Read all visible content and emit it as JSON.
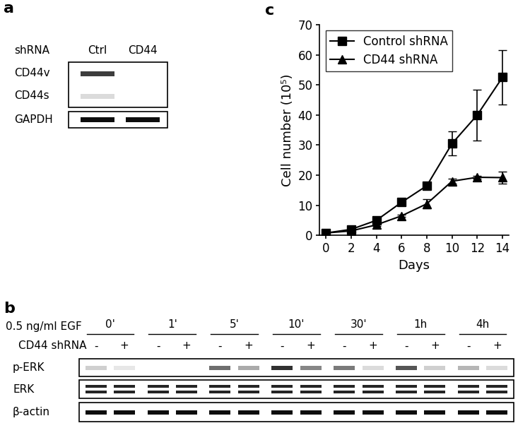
{
  "panel_labels": [
    "a",
    "b",
    "c"
  ],
  "blot_a": {
    "header": "shRNA",
    "lanes": [
      "Ctrl",
      "CD44"
    ],
    "boxes": [
      {
        "rows": [
          {
            "label": "CD44v",
            "bands": [
              0.8,
              0
            ]
          },
          {
            "label": "CD44s",
            "bands": [
              0.15,
              0
            ]
          }
        ]
      },
      {
        "rows": [
          {
            "label": "GAPDH",
            "bands": [
              1.0,
              1.0
            ]
          }
        ]
      }
    ]
  },
  "blot_b": {
    "treatment": "0.5 ng/ml EGF",
    "timepoints": [
      "0'",
      "1'",
      "5'",
      "10'",
      "30'",
      "1h",
      "4h"
    ],
    "shrna_label": "CD44 shRNA",
    "shrna_states": [
      "-",
      "+"
    ],
    "rows": [
      {
        "label": "p-ERK",
        "doublet": false,
        "bands": [
          0.2,
          0.1,
          0,
          0,
          0.6,
          0.35,
          0.85,
          0.5,
          0.55,
          0.15,
          0.7,
          0.2,
          0.3,
          0.15
        ]
      },
      {
        "label": "ERK",
        "doublet": true,
        "bands": [
          0.9,
          0.9,
          0.9,
          0.9,
          0.9,
          0.9,
          0.9,
          0.9,
          0.9,
          0.9,
          0.9,
          0.9,
          0.9,
          0.9
        ]
      },
      {
        "label": "β-actin",
        "doublet": false,
        "bands": [
          1.0,
          1.0,
          1.0,
          1.0,
          1.0,
          1.0,
          1.0,
          1.0,
          1.0,
          1.0,
          1.0,
          1.0,
          1.0,
          1.0
        ]
      }
    ]
  },
  "chart_data": {
    "type": "line",
    "xlabel": "Days",
    "ylabel": "Cell number (10⁵)",
    "x": [
      0,
      2,
      4,
      6,
      8,
      10,
      12,
      14
    ],
    "xlim": [
      -0.5,
      14.5
    ],
    "xticks": [
      0,
      2,
      4,
      6,
      8,
      10,
      12,
      14
    ],
    "ylim": [
      0,
      70
    ],
    "yticks": [
      0,
      10,
      20,
      30,
      40,
      50,
      60,
      70
    ],
    "legend": "upper left",
    "series": [
      {
        "name": "Control shRNA",
        "color": "#000000",
        "marker": "square",
        "values": [
          0.8,
          2,
          5,
          11,
          16.5,
          30.5,
          40,
          52.5
        ],
        "errors": [
          0,
          0.3,
          0.5,
          0.8,
          1,
          4,
          8.5,
          9
        ]
      },
      {
        "name": "CD44 shRNA",
        "color": "#000000",
        "marker": "triangle",
        "values": [
          0.8,
          1.5,
          3.5,
          6.5,
          10.5,
          18,
          19.3,
          19.2
        ],
        "errors": [
          0,
          0.2,
          0.3,
          0.4,
          1.5,
          0.8,
          0.5,
          2
        ]
      }
    ]
  }
}
